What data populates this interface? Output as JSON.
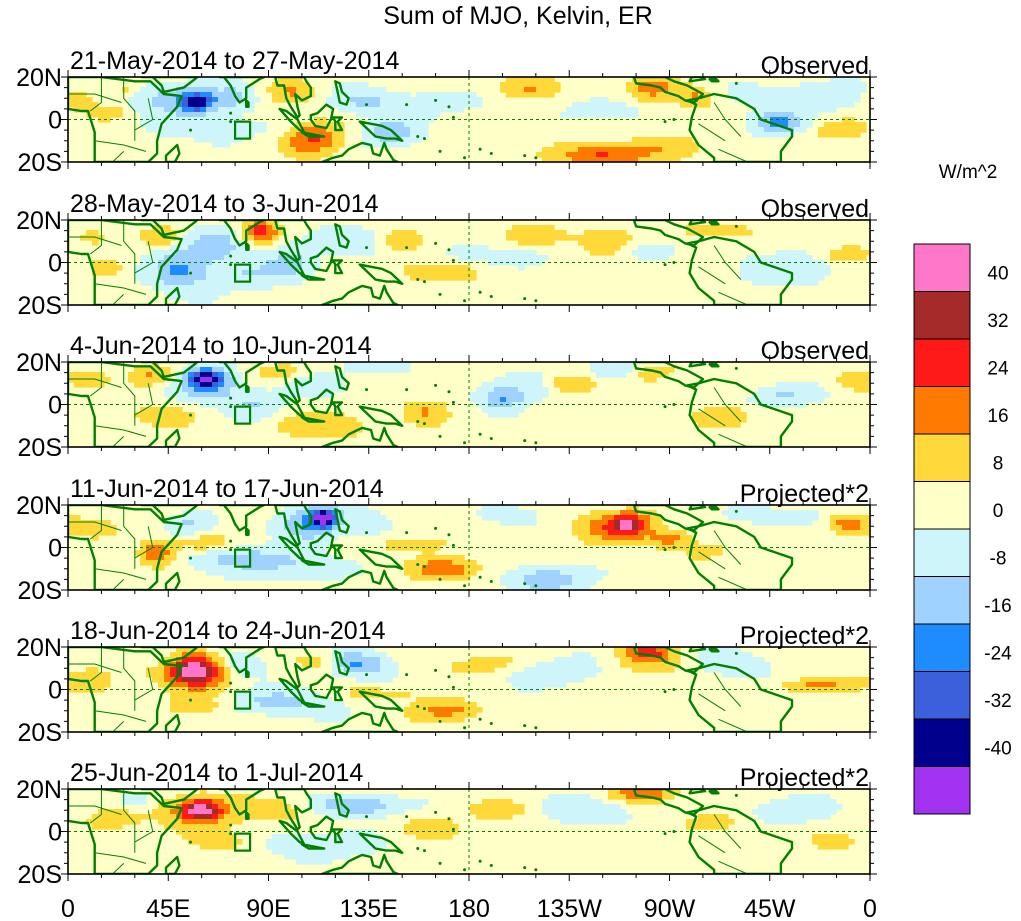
{
  "chart_data": {
    "type": "heatmap",
    "title": "Sum of MJO, Kelvin, ER",
    "units": "W/m^2",
    "x_ticks": [
      "0",
      "45E",
      "90E",
      "135E",
      "180",
      "135W",
      "90W",
      "45W",
      "0"
    ],
    "y_ticks": [
      "20N",
      "0",
      "20S"
    ],
    "lon_range": [
      0,
      360
    ],
    "lat_range": [
      -20,
      20
    ],
    "colorbar": {
      "levels": [
        -40,
        -32,
        -24,
        -16,
        -8,
        0,
        8,
        16,
        24,
        32,
        40
      ],
      "labels": [
        "40",
        "32",
        "24",
        "16",
        "8",
        "0",
        "-8",
        "-16",
        "-24",
        "-32",
        "-40"
      ],
      "colors_top_to_bottom": [
        "#ff77c8",
        "#a52a2a",
        "#ff1a1a",
        "#ff7a00",
        "#ffd93a",
        "#ffffc8",
        "#cdf5fa",
        "#a0d2ff",
        "#1e8cff",
        "#3c5fdc",
        "#00008c",
        "#a032f0"
      ]
    },
    "panels": [
      {
        "date": "21-May-2014 to 27-May-2014",
        "label": "Observed",
        "blobs": [
          {
            "lon": 5,
            "lat": 10,
            "rlon": 6,
            "rlat": 5,
            "v": 14
          },
          {
            "lon": 25,
            "lat": 14,
            "rlon": 8,
            "rlat": 4,
            "v": 10
          },
          {
            "lon": 18,
            "lat": 4,
            "rlon": 10,
            "rlat": 4,
            "v": 10
          },
          {
            "lon": 45,
            "lat": 10,
            "rlon": 20,
            "rlat": 8,
            "v": -14
          },
          {
            "lon": 58,
            "lat": 8,
            "rlon": 8,
            "rlat": 5,
            "v": -32
          },
          {
            "lon": 65,
            "lat": -4,
            "rlon": 25,
            "rlat": 6,
            "v": -8
          },
          {
            "lon": 75,
            "lat": 10,
            "rlon": 9,
            "rlat": 6,
            "v": -12
          },
          {
            "lon": 100,
            "lat": 13,
            "rlon": 10,
            "rlat": 6,
            "v": 12
          },
          {
            "lon": 110,
            "lat": -9,
            "rlon": 13,
            "rlat": 8,
            "v": 22
          },
          {
            "lon": 132,
            "lat": 8,
            "rlon": 14,
            "rlat": 6,
            "v": -12
          },
          {
            "lon": 145,
            "lat": -6,
            "rlon": 12,
            "rlat": 6,
            "v": -18
          },
          {
            "lon": 165,
            "lat": 8,
            "rlon": 22,
            "rlat": 5,
            "v": -9
          },
          {
            "lon": 205,
            "lat": 15,
            "rlon": 15,
            "rlat": 5,
            "v": 12
          },
          {
            "lon": 240,
            "lat": 4,
            "rlon": 15,
            "rlat": 5,
            "v": -10
          },
          {
            "lon": 240,
            "lat": -17,
            "rlon": 20,
            "rlat": 6,
            "v": 24
          },
          {
            "lon": 262,
            "lat": 15,
            "rlon": 12,
            "rlat": 6,
            "v": 16
          },
          {
            "lon": 282,
            "lat": 10,
            "rlon": 8,
            "rlat": 5,
            "v": 14
          },
          {
            "lon": 270,
            "lat": -12,
            "rlon": 15,
            "rlat": 6,
            "v": 9
          },
          {
            "lon": 318,
            "lat": -2,
            "rlon": 12,
            "rlat": 5,
            "v": -20
          },
          {
            "lon": 330,
            "lat": 10,
            "rlon": 25,
            "rlat": 8,
            "v": -10
          },
          {
            "lon": 345,
            "lat": -5,
            "rlon": 15,
            "rlat": 6,
            "v": 9
          }
        ]
      },
      {
        "date": "28-May-2014 to 3-Jun-2014",
        "label": "Observed",
        "blobs": [
          {
            "lon": 10,
            "lat": 12,
            "rlon": 10,
            "rlat": 5,
            "v": 9
          },
          {
            "lon": 18,
            "lat": -2,
            "rlon": 8,
            "rlat": 4,
            "v": 10
          },
          {
            "lon": 42,
            "lat": 12,
            "rlon": 8,
            "rlat": 5,
            "v": 12
          },
          {
            "lon": 50,
            "lat": -3,
            "rlon": 12,
            "rlat": 10,
            "v": -20
          },
          {
            "lon": 68,
            "lat": 8,
            "rlon": 12,
            "rlat": 8,
            "v": -14
          },
          {
            "lon": 86,
            "lat": 15,
            "rlon": 8,
            "rlat": 5,
            "v": 26
          },
          {
            "lon": 75,
            "lat": -6,
            "rlon": 18,
            "rlat": 7,
            "v": -10
          },
          {
            "lon": 100,
            "lat": 0,
            "rlon": 12,
            "rlat": 8,
            "v": -14
          },
          {
            "lon": 130,
            "lat": 10,
            "rlon": 18,
            "rlat": 6,
            "v": -10
          },
          {
            "lon": 150,
            "lat": 10,
            "rlon": 10,
            "rlat": 5,
            "v": 14
          },
          {
            "lon": 162,
            "lat": -4,
            "rlon": 25,
            "rlat": 6,
            "v": 9
          },
          {
            "lon": 190,
            "lat": 3,
            "rlon": 25,
            "rlat": 4,
            "v": -9
          },
          {
            "lon": 212,
            "lat": 13,
            "rlon": 15,
            "rlat": 5,
            "v": 10
          },
          {
            "lon": 240,
            "lat": 10,
            "rlon": 12,
            "rlat": 6,
            "v": 14
          },
          {
            "lon": 262,
            "lat": 6,
            "rlon": 10,
            "rlat": 4,
            "v": -10
          },
          {
            "lon": 290,
            "lat": 15,
            "rlon": 18,
            "rlat": 5,
            "v": 10
          },
          {
            "lon": 325,
            "lat": -3,
            "rlon": 25,
            "rlat": 8,
            "v": -9
          },
          {
            "lon": 350,
            "lat": 4,
            "rlon": 10,
            "rlat": 4,
            "v": 14
          }
        ]
      },
      {
        "date": "4-Jun-2014 to 10-Jun-2014",
        "label": "Observed",
        "blobs": [
          {
            "lon": 8,
            "lat": 12,
            "rlon": 10,
            "rlat": 5,
            "v": 9
          },
          {
            "lon": 38,
            "lat": 14,
            "rlon": 10,
            "rlat": 5,
            "v": 14
          },
          {
            "lon": 62,
            "lat": 12,
            "rlon": 9,
            "rlat": 5,
            "v": -34
          },
          {
            "lon": 65,
            "lat": 8,
            "rlon": 18,
            "rlat": 9,
            "v": -12
          },
          {
            "lon": 40,
            "lat": -5,
            "rlon": 18,
            "rlat": 6,
            "v": 9
          },
          {
            "lon": 85,
            "lat": 0,
            "rlon": 12,
            "rlat": 6,
            "v": -10
          },
          {
            "lon": 95,
            "lat": 15,
            "rlon": 15,
            "rlat": 5,
            "v": 10
          },
          {
            "lon": 110,
            "lat": 10,
            "rlon": 15,
            "rlat": 6,
            "v": -8
          },
          {
            "lon": 115,
            "lat": -10,
            "rlon": 25,
            "rlat": 7,
            "v": 10
          },
          {
            "lon": 140,
            "lat": 18,
            "rlon": 15,
            "rlat": 4,
            "v": -9
          },
          {
            "lon": 160,
            "lat": -3,
            "rlon": 10,
            "rlat": 6,
            "v": 12
          },
          {
            "lon": 195,
            "lat": 3,
            "rlon": 10,
            "rlat": 5,
            "v": -20
          },
          {
            "lon": 210,
            "lat": 10,
            "rlon": 20,
            "rlat": 6,
            "v": -10
          },
          {
            "lon": 225,
            "lat": 10,
            "rlon": 12,
            "rlat": 5,
            "v": 20
          },
          {
            "lon": 245,
            "lat": 16,
            "rlon": 12,
            "rlat": 4,
            "v": -12
          },
          {
            "lon": 262,
            "lat": 15,
            "rlon": 12,
            "rlat": 4,
            "v": 10
          },
          {
            "lon": 295,
            "lat": -6,
            "rlon": 12,
            "rlat": 5,
            "v": 14
          },
          {
            "lon": 320,
            "lat": 4,
            "rlon": 15,
            "rlat": 5,
            "v": -12
          },
          {
            "lon": 352,
            "lat": 12,
            "rlon": 8,
            "rlat": 5,
            "v": 10
          }
        ]
      },
      {
        "date": "11-Jun-2014 to 17-Jun-2014",
        "label": "Projected*2",
        "blobs": [
          {
            "lon": 10,
            "lat": 10,
            "rlon": 12,
            "rlat": 5,
            "v": 9
          },
          {
            "lon": 40,
            "lat": -2,
            "rlon": 8,
            "rlat": 6,
            "v": 20
          },
          {
            "lon": 55,
            "lat": 12,
            "rlon": 10,
            "rlat": 5,
            "v": -12
          },
          {
            "lon": 60,
            "lat": 2,
            "rlon": 12,
            "rlat": 4,
            "v": 10
          },
          {
            "lon": 80,
            "lat": -5,
            "rlon": 25,
            "rlat": 5,
            "v": -14
          },
          {
            "lon": 110,
            "lat": 12,
            "rlon": 14,
            "rlat": 8,
            "v": -22
          },
          {
            "lon": 115,
            "lat": 14,
            "rlon": 5,
            "rlat": 4,
            "v": -36
          },
          {
            "lon": 100,
            "lat": -10,
            "rlon": 20,
            "rlat": 6,
            "v": -9
          },
          {
            "lon": 135,
            "lat": 10,
            "rlon": 10,
            "rlat": 6,
            "v": -9
          },
          {
            "lon": 155,
            "lat": 2,
            "rlon": 20,
            "rlat": 5,
            "v": 9
          },
          {
            "lon": 170,
            "lat": -10,
            "rlon": 15,
            "rlat": 5,
            "v": 20
          },
          {
            "lon": 200,
            "lat": 15,
            "rlon": 12,
            "rlat": 4,
            "v": -9
          },
          {
            "lon": 215,
            "lat": -15,
            "rlon": 15,
            "rlat": 6,
            "v": -20
          },
          {
            "lon": 245,
            "lat": 10,
            "rlon": 18,
            "rlat": 8,
            "v": 16
          },
          {
            "lon": 252,
            "lat": 11,
            "rlon": 9,
            "rlat": 5,
            "v": 26
          },
          {
            "lon": 270,
            "lat": 4,
            "rlon": 10,
            "rlat": 4,
            "v": 18
          },
          {
            "lon": 285,
            "lat": -2,
            "rlon": 10,
            "rlat": 4,
            "v": 9
          },
          {
            "lon": 320,
            "lat": 15,
            "rlon": 20,
            "rlat": 4,
            "v": -10
          },
          {
            "lon": 350,
            "lat": 12,
            "rlon": 10,
            "rlat": 5,
            "v": 16
          }
        ]
      },
      {
        "date": "18-Jun-2014 to 24-Jun-2014",
        "label": "Projected*2",
        "blobs": [
          {
            "lon": 10,
            "lat": 5,
            "rlon": 12,
            "rlat": 6,
            "v": 9
          },
          {
            "lon": 55,
            "lat": 9,
            "rlon": 18,
            "rlat": 10,
            "v": 20
          },
          {
            "lon": 57,
            "lat": 9,
            "rlon": 10,
            "rlat": 6,
            "v": 30
          },
          {
            "lon": 40,
            "lat": 15,
            "rlon": 10,
            "rlat": 4,
            "v": -12
          },
          {
            "lon": 60,
            "lat": -8,
            "rlon": 15,
            "rlat": 5,
            "v": 10
          },
          {
            "lon": 78,
            "lat": 12,
            "rlon": 10,
            "rlat": 6,
            "v": -14
          },
          {
            "lon": 95,
            "lat": -6,
            "rlon": 25,
            "rlat": 6,
            "v": -14
          },
          {
            "lon": 112,
            "lat": 13,
            "rlon": 10,
            "rlat": 5,
            "v": 12
          },
          {
            "lon": 130,
            "lat": 12,
            "rlon": 15,
            "rlat": 6,
            "v": -20
          },
          {
            "lon": 140,
            "lat": -2,
            "rlon": 20,
            "rlat": 4,
            "v": 9
          },
          {
            "lon": 170,
            "lat": -10,
            "rlon": 15,
            "rlat": 5,
            "v": 18
          },
          {
            "lon": 185,
            "lat": 12,
            "rlon": 20,
            "rlat": 5,
            "v": 9
          },
          {
            "lon": 220,
            "lat": 8,
            "rlon": 20,
            "rlat": 6,
            "v": -10
          },
          {
            "lon": 260,
            "lat": 18,
            "rlon": 12,
            "rlat": 4,
            "v": 22
          },
          {
            "lon": 262,
            "lat": 12,
            "rlon": 15,
            "rlat": 5,
            "v": 10
          },
          {
            "lon": 300,
            "lat": 12,
            "rlon": 15,
            "rlat": 6,
            "v": -10
          },
          {
            "lon": 335,
            "lat": 2,
            "rlon": 20,
            "rlat": 3,
            "v": 14
          }
        ]
      },
      {
        "date": "25-Jun-2014 to 1-Jul-2014",
        "label": "Projected*2",
        "blobs": [
          {
            "lon": 20,
            "lat": 5,
            "rlon": 15,
            "rlat": 6,
            "v": 9
          },
          {
            "lon": 58,
            "lat": 10,
            "rlon": 16,
            "rlat": 8,
            "v": 20
          },
          {
            "lon": 60,
            "lat": 10,
            "rlon": 8,
            "rlat": 4,
            "v": 28
          },
          {
            "lon": 30,
            "lat": 15,
            "rlon": 10,
            "rlat": 4,
            "v": -9
          },
          {
            "lon": 75,
            "lat": -5,
            "rlon": 18,
            "rlat": 6,
            "v": 9
          },
          {
            "lon": 95,
            "lat": 10,
            "rlon": 20,
            "rlat": 6,
            "v": 9
          },
          {
            "lon": 130,
            "lat": 12,
            "rlon": 20,
            "rlat": 5,
            "v": -20
          },
          {
            "lon": 110,
            "lat": -6,
            "rlon": 25,
            "rlat": 6,
            "v": -12
          },
          {
            "lon": 160,
            "lat": 2,
            "rlon": 15,
            "rlat": 6,
            "v": 9
          },
          {
            "lon": 195,
            "lat": 10,
            "rlon": 20,
            "rlat": 5,
            "v": 9
          },
          {
            "lon": 230,
            "lat": 10,
            "rlon": 25,
            "rlat": 6,
            "v": -10
          },
          {
            "lon": 258,
            "lat": 18,
            "rlon": 15,
            "rlat": 4,
            "v": 20
          },
          {
            "lon": 290,
            "lat": 5,
            "rlon": 15,
            "rlat": 5,
            "v": 9
          },
          {
            "lon": 322,
            "lat": 10,
            "rlon": 20,
            "rlat": 6,
            "v": -9
          },
          {
            "lon": 345,
            "lat": -5,
            "rlon": 10,
            "rlat": 5,
            "v": 9
          }
        ]
      }
    ]
  }
}
